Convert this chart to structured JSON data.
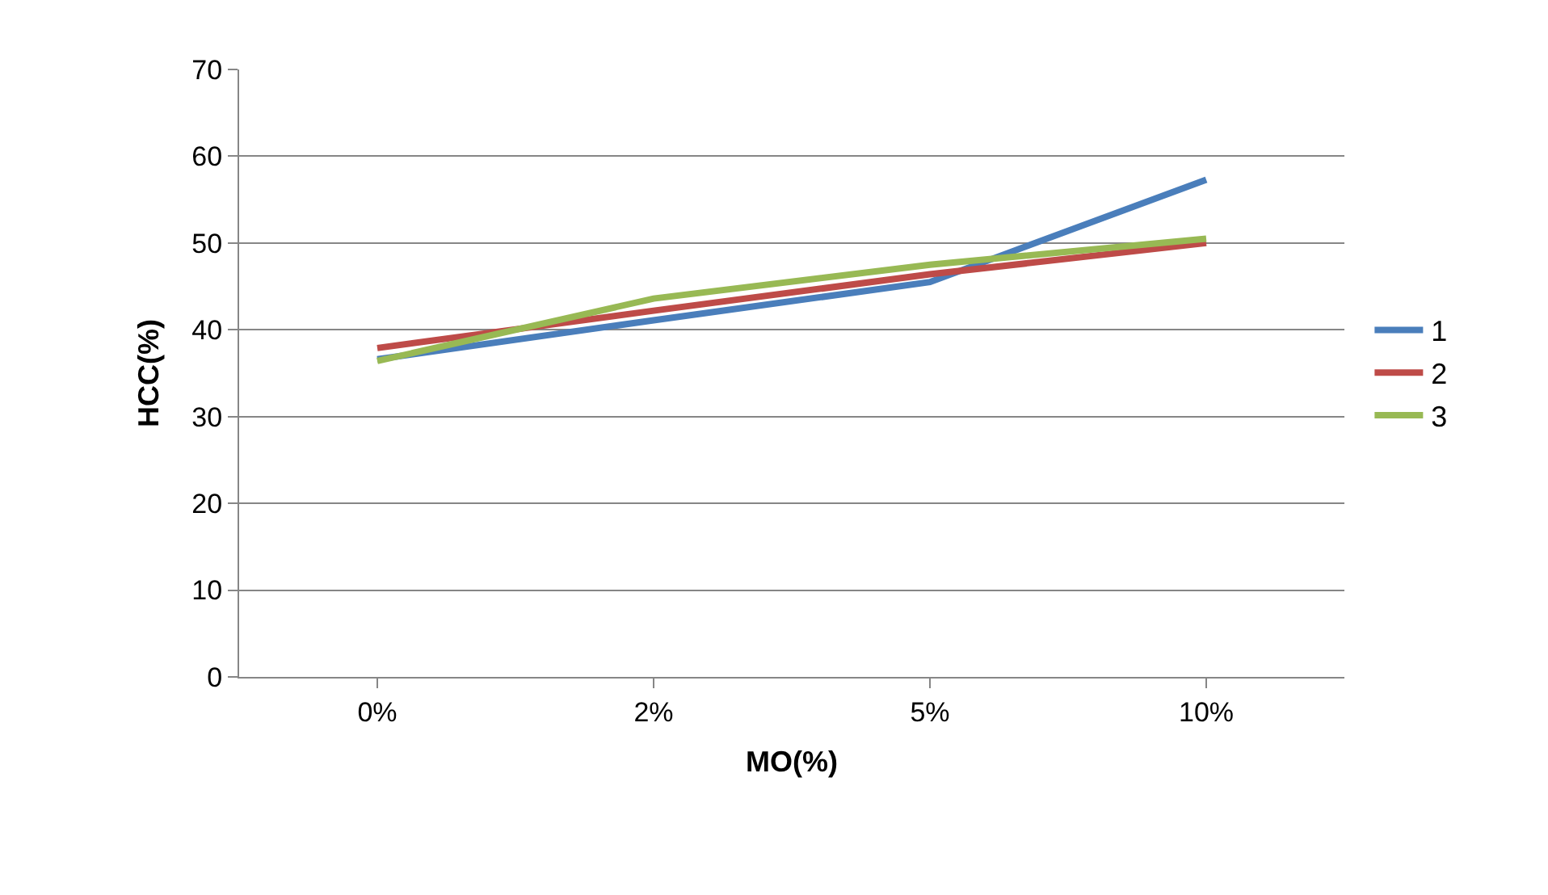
{
  "chart_data": {
    "type": "line",
    "xlabel": "MO(%)",
    "ylabel": "HCC(%)",
    "categories": [
      "0%",
      "2%",
      "5%",
      "10%"
    ],
    "series": [
      {
        "name": "1",
        "color": "#4a7ebb",
        "values": [
          36.6,
          41.1,
          45.5,
          57.3
        ]
      },
      {
        "name": "2",
        "color": "#be4b48",
        "values": [
          37.9,
          42.2,
          46.4,
          50.0
        ]
      },
      {
        "name": "3",
        "color": "#98b954",
        "values": [
          36.4,
          43.6,
          47.5,
          50.5
        ]
      }
    ],
    "ylim": [
      0,
      70
    ],
    "yticks": [
      0,
      10,
      20,
      30,
      40,
      50,
      60,
      70
    ],
    "grid": "y",
    "legend": "right",
    "marker": "none",
    "line_style": "solid"
  }
}
